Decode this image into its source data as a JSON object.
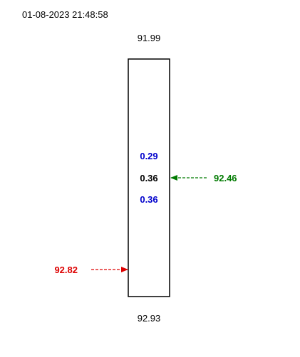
{
  "timestamp": "01-08-2023 21:48:58",
  "gauge": {
    "top_value": "91.99",
    "bottom_value": "92.93",
    "inner_values": [
      {
        "text": "0.29",
        "color": "#0000cc"
      },
      {
        "text": "0.36",
        "color": "#000000"
      },
      {
        "text": "0.36",
        "color": "#0000cc"
      }
    ]
  },
  "markers": {
    "right": {
      "value": "92.46",
      "color": "#007a00",
      "direction": "pointing-left"
    },
    "left": {
      "value": "92.82",
      "color": "#dd0000",
      "direction": "pointing-right"
    }
  }
}
